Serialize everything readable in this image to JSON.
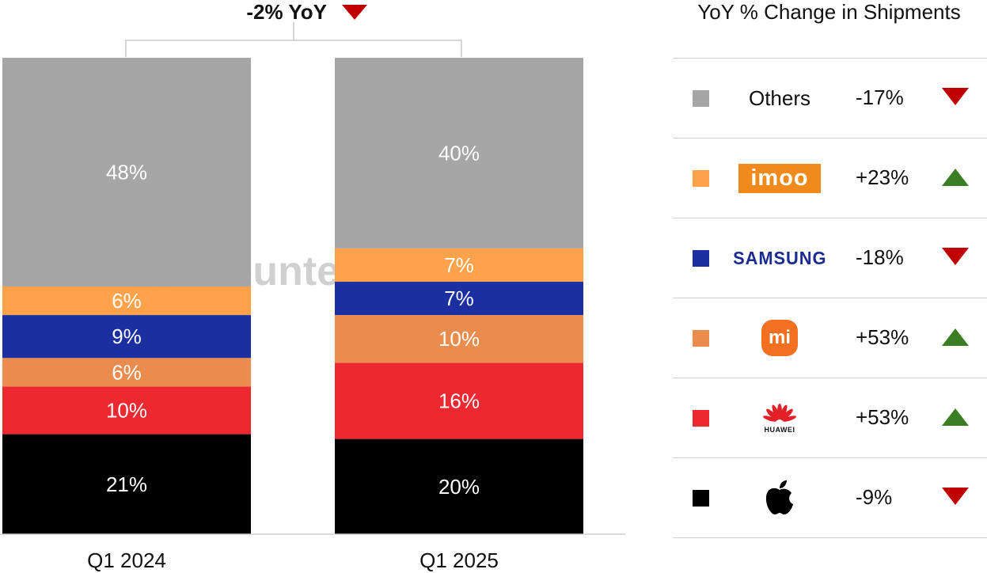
{
  "chart_data": {
    "type": "bar",
    "stacked": true,
    "categories": [
      "Q1 2024",
      "Q1 2025"
    ],
    "series": [
      {
        "name": "Apple",
        "color": "#000000",
        "values": [
          21,
          20
        ],
        "labels": [
          "21%",
          "20%"
        ]
      },
      {
        "name": "Huawei",
        "color": "#ee2830",
        "values": [
          10,
          16
        ],
        "labels": [
          "10%",
          "16%"
        ]
      },
      {
        "name": "Xiaomi",
        "color": "#ea8c4e",
        "values": [
          6,
          10
        ],
        "labels": [
          "6%",
          "10%"
        ]
      },
      {
        "name": "Samsung",
        "color": "#1c2fa0",
        "values": [
          9,
          7
        ],
        "labels": [
          "9%",
          "7%"
        ]
      },
      {
        "name": "imoo",
        "color": "#ffa24b",
        "values": [
          6,
          7
        ],
        "labels": [
          "6%",
          "7%"
        ]
      },
      {
        "name": "Others",
        "color": "#a6a6a6",
        "values": [
          48,
          40
        ],
        "labels": [
          "48%",
          "40%"
        ]
      }
    ],
    "ylim": [
      0,
      100
    ],
    "grid": false,
    "annotation": "-2% YoY",
    "annotation_direction": "down",
    "watermark": "Counterpoint",
    "legend_title": "YoY % Change in Shipments",
    "legend_placement": "right",
    "legend": [
      {
        "name": "Others",
        "logo": "Others",
        "color": "#a6a6a6",
        "change": "-17%",
        "direction": "down"
      },
      {
        "name": "imoo",
        "logo": "imoo",
        "color": "#ffa24b",
        "change": "+23%",
        "direction": "up"
      },
      {
        "name": "Samsung",
        "logo": "SAMSUNG",
        "color": "#1c2fa0",
        "change": "-18%",
        "direction": "down"
      },
      {
        "name": "Xiaomi",
        "logo": "mi",
        "color": "#ea8c4e",
        "change": "+53%",
        "direction": "up"
      },
      {
        "name": "Huawei",
        "logo": "HUAWEI",
        "color": "#ee2830",
        "change": "+53%",
        "direction": "up"
      },
      {
        "name": "Apple",
        "logo": "apple-logo",
        "color": "#000000",
        "change": "-9%",
        "direction": "down"
      }
    ]
  },
  "colors": {
    "arrow_down": "#c00000",
    "arrow_up": "#3a7d22",
    "divider": "#d0d0d0"
  }
}
